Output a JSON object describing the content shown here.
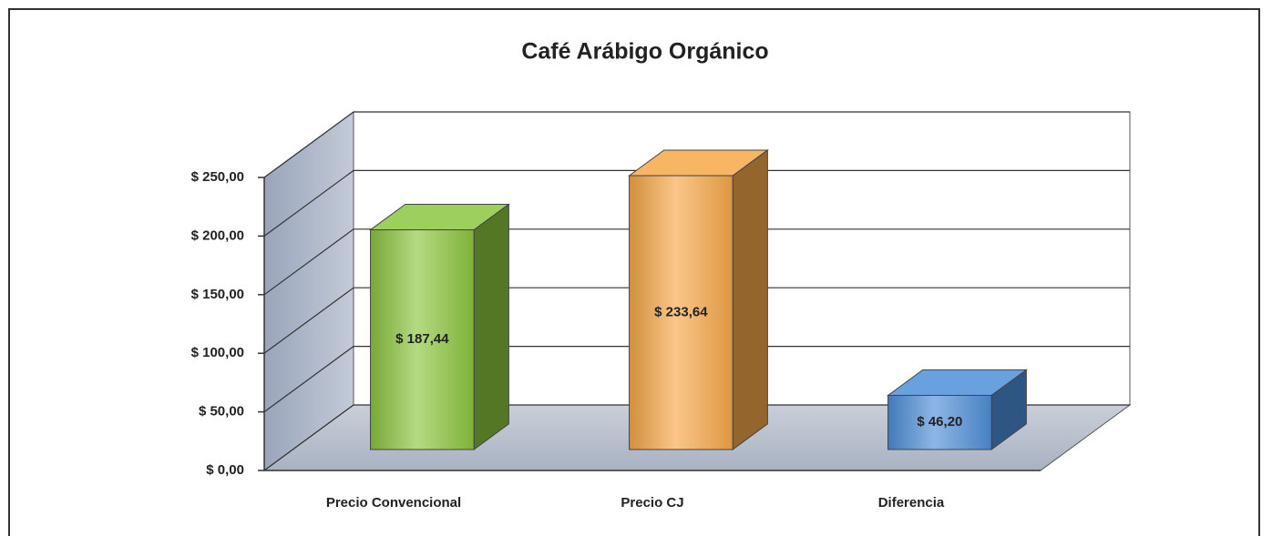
{
  "chart_data": {
    "type": "bar3d",
    "title": "Café Arábigo Orgánico",
    "categories": [
      "Precio Convencional",
      "Precio CJ",
      "Diferencia"
    ],
    "values": [
      187.44,
      233.64,
      46.2
    ],
    "value_labels": [
      "$ 187,44",
      "$ 233,64",
      "$ 46,20"
    ],
    "colors": [
      "#8cc63f",
      "#f7a849",
      "#4f8fd8"
    ],
    "ylim": [
      0,
      250
    ],
    "yticks": [
      {
        "value": 0,
        "label": "$ 0,00"
      },
      {
        "value": 50,
        "label": "$ 50,00"
      },
      {
        "value": 100,
        "label": "$ 100,00"
      },
      {
        "value": 150,
        "label": "$ 150,00"
      },
      {
        "value": 200,
        "label": "$ 200,00"
      },
      {
        "value": 250,
        "label": "$ 250,00"
      }
    ],
    "grid": true
  }
}
